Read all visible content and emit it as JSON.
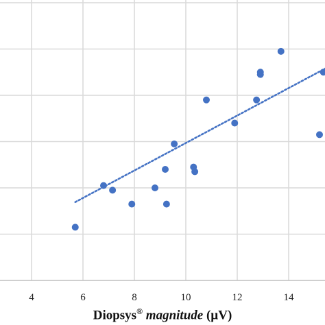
{
  "chart_data": {
    "type": "scatter",
    "title": "",
    "xlabel": {
      "prefix": "Diopsys",
      "mark": "®",
      "italic": "magnitude",
      "suffix": "(µV)"
    },
    "ylabel": "",
    "x_ticks": [
      4,
      6,
      8,
      10,
      12,
      14
    ],
    "xlim": [
      3.0,
      15.8
    ],
    "ylim": [
      0,
      6
    ],
    "grid": true,
    "trendline": {
      "style": "dotted-linear",
      "slope": 0.297,
      "intercept": -0.0
    },
    "series": [
      {
        "points": [
          [
            5.7,
            1.15
          ],
          [
            6.8,
            2.05
          ],
          [
            7.15,
            1.95
          ],
          [
            7.9,
            1.65
          ],
          [
            8.8,
            2.0
          ],
          [
            9.2,
            2.4
          ],
          [
            9.25,
            1.65
          ],
          [
            9.55,
            2.95
          ],
          [
            10.3,
            2.45
          ],
          [
            10.35,
            2.35
          ],
          [
            10.8,
            3.9
          ],
          [
            11.9,
            3.4
          ],
          [
            12.75,
            3.9
          ],
          [
            12.9,
            4.45
          ],
          [
            12.9,
            4.5
          ],
          [
            13.7,
            4.95
          ],
          [
            15.2,
            3.15
          ],
          [
            15.35,
            4.5
          ]
        ]
      }
    ],
    "colors": {
      "marker": "#4472C4",
      "trendline": "#4472C4",
      "grid": "#d9d9d9",
      "axis": "#bfbfbf"
    }
  }
}
